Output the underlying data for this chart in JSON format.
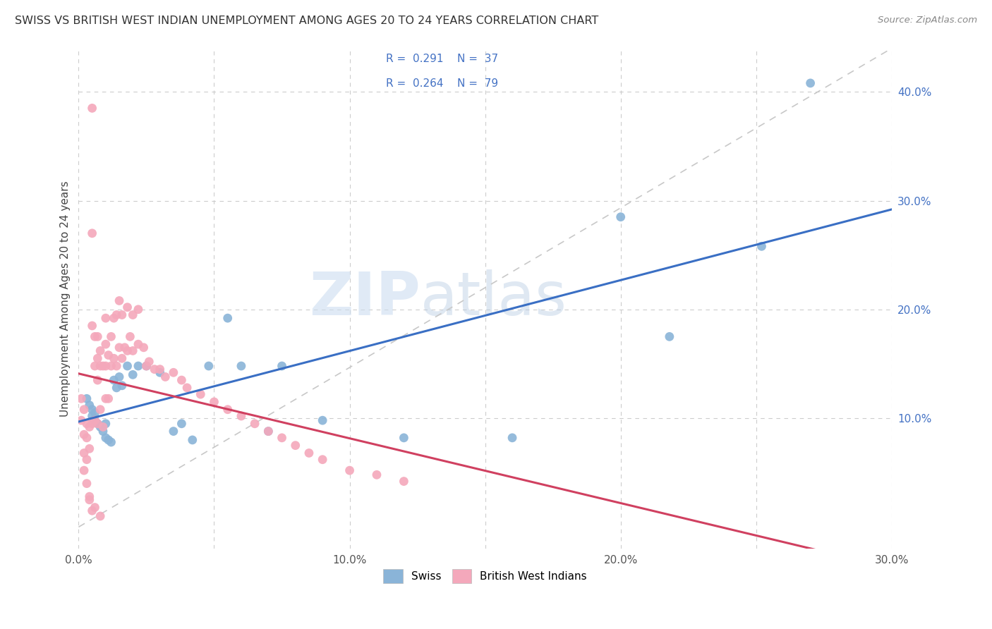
{
  "title": "SWISS VS BRITISH WEST INDIAN UNEMPLOYMENT AMONG AGES 20 TO 24 YEARS CORRELATION CHART",
  "source": "Source: ZipAtlas.com",
  "ylabel": "Unemployment Among Ages 20 to 24 years",
  "xlim": [
    0.0,
    0.3
  ],
  "ylim": [
    -0.02,
    0.44
  ],
  "xticks": [
    0.0,
    0.05,
    0.1,
    0.15,
    0.2,
    0.25,
    0.3
  ],
  "xtick_labels": [
    "0.0%",
    "",
    "10.0%",
    "",
    "20.0%",
    "",
    "30.0%"
  ],
  "yticks_right": [
    0.1,
    0.2,
    0.3,
    0.4
  ],
  "ytick_labels_right": [
    "10.0%",
    "20.0%",
    "30.0%",
    "40.0%"
  ],
  "swiss_color": "#8ab4d8",
  "bwi_color": "#f4a8bb",
  "regression_line_color_swiss": "#3a6fc4",
  "regression_line_color_bwi": "#d04060",
  "diagonal_color": "#c8c8c8",
  "watermark_zip": "ZIP",
  "watermark_atlas": "atlas",
  "background_color": "#ffffff",
  "swiss_x": [
    0.003,
    0.004,
    0.005,
    0.005,
    0.006,
    0.006,
    0.007,
    0.008,
    0.009,
    0.01,
    0.01,
    0.011,
    0.012,
    0.013,
    0.014,
    0.015,
    0.016,
    0.018,
    0.02,
    0.022,
    0.025,
    0.03,
    0.035,
    0.038,
    0.042,
    0.048,
    0.055,
    0.06,
    0.07,
    0.075,
    0.09,
    0.12,
    0.16,
    0.2,
    0.218,
    0.252,
    0.27
  ],
  "swiss_y": [
    0.118,
    0.112,
    0.108,
    0.102,
    0.098,
    0.105,
    0.095,
    0.092,
    0.088,
    0.095,
    0.082,
    0.08,
    0.078,
    0.135,
    0.128,
    0.138,
    0.13,
    0.148,
    0.14,
    0.148,
    0.148,
    0.142,
    0.088,
    0.095,
    0.08,
    0.148,
    0.192,
    0.148,
    0.088,
    0.148,
    0.098,
    0.082,
    0.082,
    0.285,
    0.175,
    0.258,
    0.408
  ],
  "bwi_x": [
    0.001,
    0.001,
    0.002,
    0.002,
    0.002,
    0.003,
    0.003,
    0.003,
    0.004,
    0.004,
    0.005,
    0.005,
    0.005,
    0.005,
    0.006,
    0.006,
    0.006,
    0.007,
    0.007,
    0.007,
    0.007,
    0.008,
    0.008,
    0.008,
    0.009,
    0.009,
    0.01,
    0.01,
    0.01,
    0.01,
    0.011,
    0.011,
    0.012,
    0.012,
    0.013,
    0.013,
    0.014,
    0.014,
    0.015,
    0.015,
    0.016,
    0.016,
    0.017,
    0.018,
    0.018,
    0.019,
    0.02,
    0.02,
    0.022,
    0.022,
    0.024,
    0.025,
    0.026,
    0.028,
    0.03,
    0.032,
    0.035,
    0.038,
    0.04,
    0.045,
    0.05,
    0.055,
    0.06,
    0.065,
    0.07,
    0.075,
    0.08,
    0.085,
    0.09,
    0.1,
    0.11,
    0.12,
    0.002,
    0.004,
    0.006,
    0.008,
    0.003,
    0.004,
    0.005
  ],
  "bwi_y": [
    0.118,
    0.098,
    0.108,
    0.085,
    0.068,
    0.095,
    0.082,
    0.062,
    0.092,
    0.072,
    0.385,
    0.27,
    0.185,
    0.095,
    0.175,
    0.148,
    0.098,
    0.175,
    0.155,
    0.135,
    0.095,
    0.162,
    0.148,
    0.108,
    0.148,
    0.092,
    0.192,
    0.168,
    0.148,
    0.118,
    0.158,
    0.118,
    0.175,
    0.148,
    0.192,
    0.155,
    0.195,
    0.148,
    0.208,
    0.165,
    0.195,
    0.155,
    0.165,
    0.202,
    0.162,
    0.175,
    0.195,
    0.162,
    0.2,
    0.168,
    0.165,
    0.148,
    0.152,
    0.145,
    0.145,
    0.138,
    0.142,
    0.135,
    0.128,
    0.122,
    0.115,
    0.108,
    0.102,
    0.095,
    0.088,
    0.082,
    0.075,
    0.068,
    0.062,
    0.052,
    0.048,
    0.042,
    0.052,
    0.028,
    0.018,
    0.01,
    0.04,
    0.025,
    0.015
  ]
}
